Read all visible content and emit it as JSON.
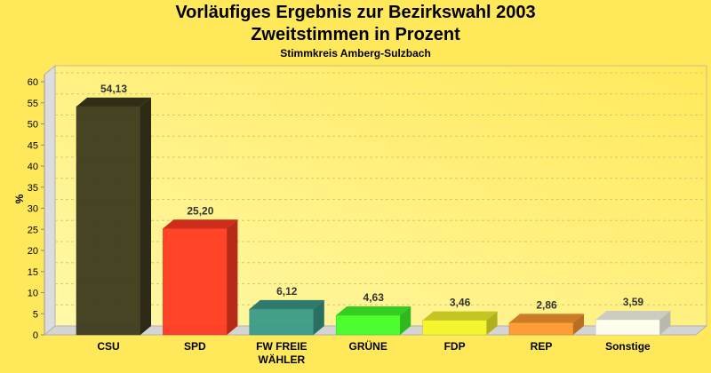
{
  "chart_data": {
    "type": "bar",
    "title": "Vorläufiges Ergebnis zur Bezirkswahl 2003",
    "subtitle": "Zweitstimmen in Prozent",
    "subsubtitle": "Stimmkreis Amberg-Sulzbach",
    "ylabel": "%",
    "xlabel": "",
    "ylim": [
      0,
      60
    ],
    "yticks": [
      0,
      5,
      10,
      15,
      20,
      25,
      30,
      35,
      40,
      45,
      50,
      55,
      60
    ],
    "grid": true,
    "categories": [
      "CSU",
      "SPD",
      "FW FREIE WÄHLER",
      "GRÜNE",
      "FDP",
      "REP",
      "Sonstige"
    ],
    "category_lines": [
      [
        "CSU"
      ],
      [
        "SPD"
      ],
      [
        "FW FREIE",
        "WÄHLER"
      ],
      [
        "GRÜNE"
      ],
      [
        "FDP"
      ],
      [
        "REP"
      ],
      [
        "Sonstige"
      ]
    ],
    "values": [
      54.13,
      25.2,
      6.12,
      4.63,
      3.46,
      2.86,
      3.59
    ],
    "value_labels": [
      "54,13",
      "25,20",
      "6,12",
      "4,63",
      "3,46",
      "2,86",
      "3,59"
    ],
    "colors": [
      "#3d3a1e",
      "#ff3a22",
      "#3a9a88",
      "#44ff2a",
      "#f5f52a",
      "#ff9a30",
      "#fffff0"
    ],
    "background": "#ffe95a"
  }
}
